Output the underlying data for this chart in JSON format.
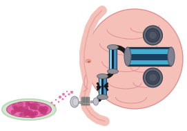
{
  "bg_color": "#ffffff",
  "brain_color": "#f5c0b8",
  "brain_edge": "#e09090",
  "face_color": "#f5c0b8",
  "face_edge": "#e09090",
  "petri_outer_color": "#d0e8cc",
  "petri_inner_color": "#e870b0",
  "petri_edge": "#a8c8a0",
  "culture_spot": "#c03878",
  "pink_dot": "#e860a8",
  "tube_light": "#80c8e8",
  "tube_mid": "#4090c0",
  "tube_dark": "#1a4060",
  "tube_darkest": "#102030",
  "pipe_color": "#1a1a1a",
  "cap_color": "#909098",
  "cap_edge": "#606068",
  "ms_outer": "#1a4060",
  "ms_inner": "#40b0d0",
  "ms_mid": "#2060a0",
  "port_outer": "#606878",
  "port_inner": "#404858",
  "grid_color": "#909090",
  "grid_edge": "#606060",
  "lens_color": "#c0c8d0",
  "arrow_color": "#181818",
  "figsize": [
    2.71,
    1.89
  ],
  "dpi": 100
}
